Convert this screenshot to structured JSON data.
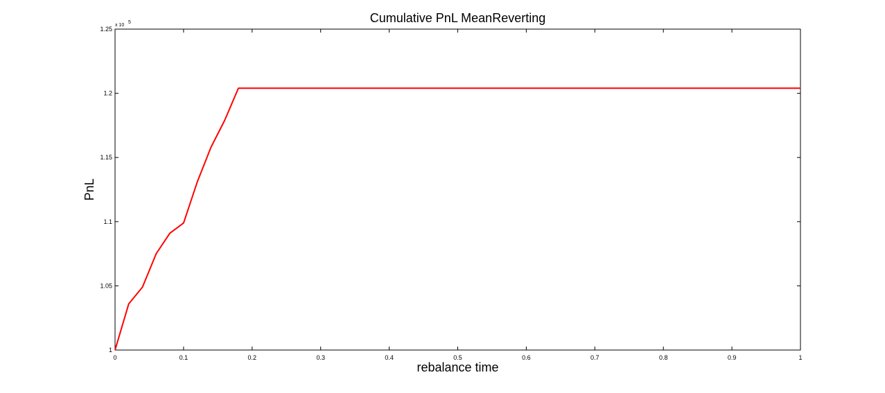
{
  "chart_data": {
    "type": "line",
    "title": "Cumulative PnL MeanReverting",
    "xlabel": "rebalance time",
    "ylabel": "PnL",
    "y_exponent_label": "x 10",
    "y_exponent_power": "5",
    "xlim": [
      0,
      1
    ],
    "ylim": [
      1.0,
      1.25
    ],
    "x_ticks": [
      0,
      0.1,
      0.2,
      0.3,
      0.4,
      0.5,
      0.6,
      0.7,
      0.8,
      0.9,
      1
    ],
    "x_tick_labels": [
      "0",
      "0.1",
      "0.2",
      "0.3",
      "0.4",
      "0.5",
      "0.6",
      "0.7",
      "0.8",
      "0.9",
      "1"
    ],
    "y_ticks": [
      1.0,
      1.05,
      1.1,
      1.15,
      1.2,
      1.25
    ],
    "y_tick_labels": [
      "1",
      "1.05",
      "1.1",
      "1.15",
      "1.2",
      "1.25"
    ],
    "grid": false,
    "series": [
      {
        "color": "#ff0000",
        "x": [
          0,
          0.02,
          0.04,
          0.06,
          0.08,
          0.1,
          0.12,
          0.14,
          0.16,
          0.18,
          1.0
        ],
        "y": [
          1.0,
          1.036,
          1.049,
          1.075,
          1.091,
          1.099,
          1.131,
          1.158,
          1.179,
          1.204,
          1.204
        ]
      }
    ]
  }
}
